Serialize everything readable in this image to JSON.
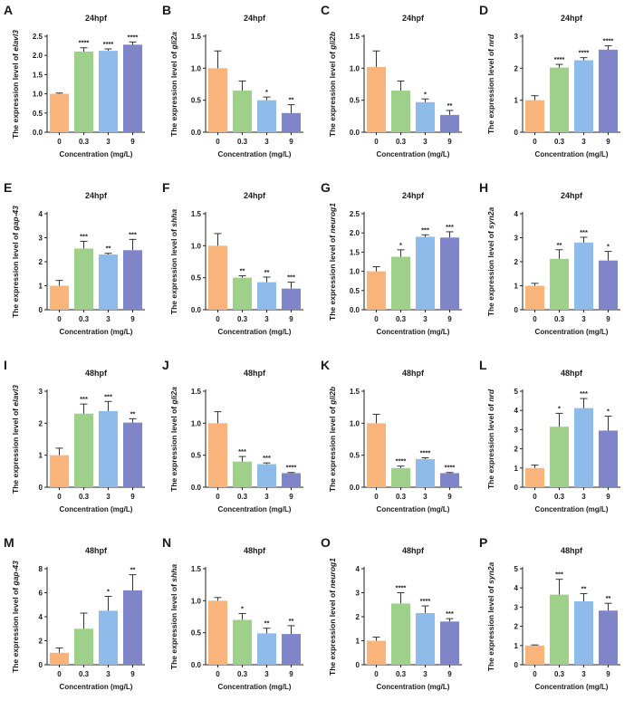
{
  "panel_colors": [
    "#f8b47b",
    "#9fd089",
    "#8ebbea",
    "#7f85c8"
  ],
  "chart_data": [
    {
      "label": "A",
      "type": "bar",
      "title": "24hpf",
      "gene": "elavl3",
      "ylabel_prefix": "The expression level of ",
      "xlabel": "Concentration (mg/L)",
      "categories": [
        "0",
        "0.3",
        "3",
        "9"
      ],
      "values": [
        1.0,
        2.1,
        2.12,
        2.28
      ],
      "errors": [
        0.02,
        0.1,
        0.05,
        0.07
      ],
      "sig": [
        "",
        "****",
        "****",
        "****"
      ],
      "ylim": [
        0,
        2.5
      ],
      "yticks": [
        "0.0",
        "0.5",
        "1.0",
        "1.5",
        "2.0",
        "2.5"
      ]
    },
    {
      "label": "B",
      "type": "bar",
      "title": "24hpf",
      "gene": "gli2a",
      "ylabel_prefix": "The expression level of ",
      "xlabel": "Concentration (mg/L)",
      "categories": [
        "0",
        "0.3",
        "3",
        "9"
      ],
      "values": [
        1.0,
        0.65,
        0.5,
        0.3
      ],
      "errors": [
        0.27,
        0.15,
        0.05,
        0.13
      ],
      "sig": [
        "",
        "",
        "*",
        "**"
      ],
      "ylim": [
        0,
        1.5
      ],
      "yticks": [
        "0.0",
        "0.5",
        "1.0",
        "1.5"
      ]
    },
    {
      "label": "C",
      "type": "bar",
      "title": "24hpf",
      "gene": "gli2b",
      "ylabel_prefix": "The expression level of ",
      "xlabel": "Concentration (mg/L)",
      "categories": [
        "0",
        "0.3",
        "3",
        "9"
      ],
      "values": [
        1.02,
        0.65,
        0.47,
        0.27
      ],
      "errors": [
        0.25,
        0.15,
        0.05,
        0.07
      ],
      "sig": [
        "",
        "",
        "*",
        "**"
      ],
      "ylim": [
        0,
        1.5
      ],
      "yticks": [
        "0.0",
        "0.5",
        "1.0",
        "1.5"
      ]
    },
    {
      "label": "D",
      "type": "bar",
      "title": "24hpf",
      "gene": "nrd",
      "ylabel_prefix": "The expression level of ",
      "xlabel": "Concentration (mg/L)",
      "categories": [
        "0",
        "0.3",
        "3",
        "9"
      ],
      "values": [
        1.0,
        2.02,
        2.25,
        2.58
      ],
      "errors": [
        0.14,
        0.1,
        0.08,
        0.12
      ],
      "sig": [
        "",
        "****",
        "****",
        "****"
      ],
      "ylim": [
        0,
        3
      ],
      "yticks": [
        "0",
        "1",
        "2",
        "3"
      ]
    },
    {
      "label": "E",
      "type": "bar",
      "title": "24hpf",
      "gene": "gap-43",
      "ylabel_prefix": "The expression level of ",
      "xlabel": "Concentration (mg/L)",
      "categories": [
        "0",
        "0.3",
        "3",
        "9"
      ],
      "values": [
        1.0,
        2.55,
        2.3,
        2.48
      ],
      "errors": [
        0.22,
        0.3,
        0.05,
        0.45
      ],
      "sig": [
        "",
        "***",
        "**",
        "***"
      ],
      "ylim": [
        0,
        4
      ],
      "yticks": [
        "0",
        "1",
        "2",
        "3",
        "4"
      ]
    },
    {
      "label": "F",
      "type": "bar",
      "title": "24hpf",
      "gene": "shha",
      "ylabel_prefix": "The expression level of ",
      "xlabel": "Concentration (mg/L)",
      "categories": [
        "0",
        "0.3",
        "3",
        "9"
      ],
      "values": [
        1.0,
        0.5,
        0.43,
        0.33
      ],
      "errors": [
        0.19,
        0.03,
        0.08,
        0.1
      ],
      "sig": [
        "",
        "**",
        "**",
        "***"
      ],
      "ylim": [
        0,
        1.5
      ],
      "yticks": [
        "0.0",
        "0.5",
        "1.0",
        "1.5"
      ]
    },
    {
      "label": "G",
      "type": "bar",
      "title": "24hpf",
      "gene": "neurog1",
      "ylabel_prefix": "The expression level of ",
      "xlabel": "Concentration (mg/L)",
      "categories": [
        "0",
        "0.3",
        "3",
        "9"
      ],
      "values": [
        1.0,
        1.38,
        1.9,
        1.88
      ],
      "errors": [
        0.12,
        0.18,
        0.05,
        0.15
      ],
      "sig": [
        "",
        "*",
        "***",
        "***"
      ],
      "ylim": [
        0,
        2.5
      ],
      "yticks": [
        "0.0",
        "0.5",
        "1.0",
        "1.5",
        "2.0",
        "2.5"
      ]
    },
    {
      "label": "H",
      "type": "bar",
      "title": "24hpf",
      "gene": "syn2a",
      "ylabel_prefix": "The expression level of ",
      "xlabel": "Concentration (mg/L)",
      "categories": [
        "0",
        "0.3",
        "3",
        "9"
      ],
      "values": [
        1.0,
        2.12,
        2.8,
        2.05
      ],
      "errors": [
        0.1,
        0.38,
        0.22,
        0.38
      ],
      "sig": [
        "",
        "**",
        "***",
        "*"
      ],
      "ylim": [
        0,
        4
      ],
      "yticks": [
        "0",
        "1",
        "2",
        "3",
        "4"
      ]
    },
    {
      "label": "I",
      "type": "bar",
      "title": "48hpf",
      "gene": "elavl3",
      "ylabel_prefix": "The expression level of ",
      "xlabel": "Concentration (mg/L)",
      "categories": [
        "0",
        "0.3",
        "3",
        "9"
      ],
      "values": [
        1.0,
        2.3,
        2.38,
        2.02
      ],
      "errors": [
        0.22,
        0.3,
        0.3,
        0.12
      ],
      "sig": [
        "",
        "***",
        "***",
        "**"
      ],
      "ylim": [
        0,
        3
      ],
      "yticks": [
        "0",
        "1",
        "2",
        "3"
      ]
    },
    {
      "label": "J",
      "type": "bar",
      "title": "48hpf",
      "gene": "gli2a",
      "ylabel_prefix": "The expression level of ",
      "xlabel": "Concentration (mg/L)",
      "categories": [
        "0",
        "0.3",
        "3",
        "9"
      ],
      "values": [
        1.0,
        0.4,
        0.36,
        0.22
      ],
      "errors": [
        0.18,
        0.08,
        0.02,
        0.01
      ],
      "sig": [
        "",
        "***",
        "***",
        "****"
      ],
      "ylim": [
        0,
        1.5
      ],
      "yticks": [
        "0.0",
        "0.5",
        "1.0",
        "1.5"
      ]
    },
    {
      "label": "K",
      "type": "bar",
      "title": "48hpf",
      "gene": "gli2b",
      "ylabel_prefix": "The expression level of ",
      "xlabel": "Concentration (mg/L)",
      "categories": [
        "0",
        "0.3",
        "3",
        "9"
      ],
      "values": [
        1.0,
        0.3,
        0.44,
        0.22
      ],
      "errors": [
        0.14,
        0.03,
        0.02,
        0.01
      ],
      "sig": [
        "",
        "****",
        "****",
        "****"
      ],
      "ylim": [
        0,
        1.5
      ],
      "yticks": [
        "0.0",
        "0.5",
        "1.0",
        "1.5"
      ]
    },
    {
      "label": "L",
      "type": "bar",
      "title": "48hpf",
      "gene": "nrd",
      "ylabel_prefix": "The expression level of ",
      "xlabel": "Concentration (mg/L)",
      "categories": [
        "0",
        "0.3",
        "3",
        "9"
      ],
      "values": [
        1.0,
        3.15,
        4.12,
        2.95
      ],
      "errors": [
        0.15,
        0.7,
        0.5,
        0.75
      ],
      "sig": [
        "",
        "*",
        "***",
        "*"
      ],
      "ylim": [
        0,
        5
      ],
      "yticks": [
        "0",
        "1",
        "2",
        "3",
        "4",
        "5"
      ]
    },
    {
      "label": "M",
      "type": "bar",
      "title": "48hpf",
      "gene": "gap-43",
      "ylabel_prefix": "The expression level of ",
      "xlabel": "Concentration (mg/L)",
      "categories": [
        "0",
        "0.3",
        "3",
        "9"
      ],
      "values": [
        1.0,
        3.0,
        4.5,
        6.2
      ],
      "errors": [
        0.4,
        1.3,
        1.2,
        1.3
      ],
      "sig": [
        "",
        "",
        "*",
        "**"
      ],
      "ylim": [
        0,
        8
      ],
      "yticks": [
        "0",
        "2",
        "4",
        "6",
        "8"
      ]
    },
    {
      "label": "N",
      "type": "bar",
      "title": "48hpf",
      "gene": "shha",
      "ylabel_prefix": "The expression level of ",
      "xlabel": "Concentration (mg/L)",
      "categories": [
        "0",
        "0.3",
        "3",
        "9"
      ],
      "values": [
        1.0,
        0.7,
        0.49,
        0.48
      ],
      "errors": [
        0.05,
        0.1,
        0.08,
        0.13
      ],
      "sig": [
        "",
        "*",
        "**",
        "**"
      ],
      "ylim": [
        0,
        1.5
      ],
      "yticks": [
        "0.0",
        "0.5",
        "1.0",
        "1.5"
      ]
    },
    {
      "label": "O",
      "type": "bar",
      "title": "48hpf",
      "gene": "neurog1",
      "ylabel_prefix": "The expression level of ",
      "xlabel": "Concentration (mg/L)",
      "categories": [
        "0",
        "0.3",
        "3",
        "9"
      ],
      "values": [
        1.0,
        2.55,
        2.15,
        1.8
      ],
      "errors": [
        0.15,
        0.45,
        0.3,
        0.12
      ],
      "sig": [
        "",
        "****",
        "****",
        "***"
      ],
      "ylim": [
        0,
        4
      ],
      "yticks": [
        "0",
        "1",
        "2",
        "3",
        "4"
      ]
    },
    {
      "label": "P",
      "type": "bar",
      "title": "48hpf",
      "gene": "syn2a",
      "ylabel_prefix": "The expression level of ",
      "xlabel": "Concentration (mg/L)",
      "categories": [
        "0",
        "0.3",
        "3",
        "9"
      ],
      "values": [
        1.0,
        3.65,
        3.3,
        2.82
      ],
      "errors": [
        0.03,
        0.8,
        0.4,
        0.38
      ],
      "sig": [
        "",
        "***",
        "**",
        "**"
      ],
      "ylim": [
        0,
        5
      ],
      "yticks": [
        "0",
        "1",
        "2",
        "3",
        "4",
        "5"
      ]
    }
  ]
}
